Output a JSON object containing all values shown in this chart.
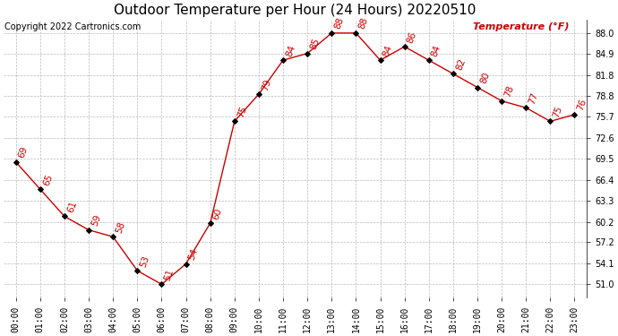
{
  "title": "Outdoor Temperature per Hour (24 Hours) 20220510",
  "copyright_text": "Copyright 2022 Cartronics.com",
  "legend_label": "Temperature (°F)",
  "hours": [
    "00:00",
    "01:00",
    "02:00",
    "03:00",
    "04:00",
    "05:00",
    "06:00",
    "07:00",
    "08:00",
    "09:00",
    "10:00",
    "11:00",
    "12:00",
    "13:00",
    "14:00",
    "15:00",
    "16:00",
    "17:00",
    "18:00",
    "19:00",
    "20:00",
    "21:00",
    "22:00",
    "23:00"
  ],
  "temperatures": [
    69,
    65,
    61,
    59,
    58,
    53,
    51,
    54,
    60,
    75,
    79,
    84,
    85,
    88,
    88,
    84,
    86,
    84,
    82,
    80,
    78,
    77,
    75,
    76
  ],
  "line_color": "#cc0000",
  "marker_color": "#000000",
  "label_color": "#cc0000",
  "grid_color": "#bbbbbb",
  "background_color": "#ffffff",
  "title_fontsize": 11,
  "label_fontsize": 7.5,
  "tick_fontsize": 7,
  "yticks": [
    51.0,
    54.1,
    57.2,
    60.2,
    63.3,
    66.4,
    69.5,
    72.6,
    75.7,
    78.8,
    81.8,
    84.9,
    88.0
  ],
  "ylim": [
    49.0,
    90.0
  ],
  "copyright_fontsize": 7
}
